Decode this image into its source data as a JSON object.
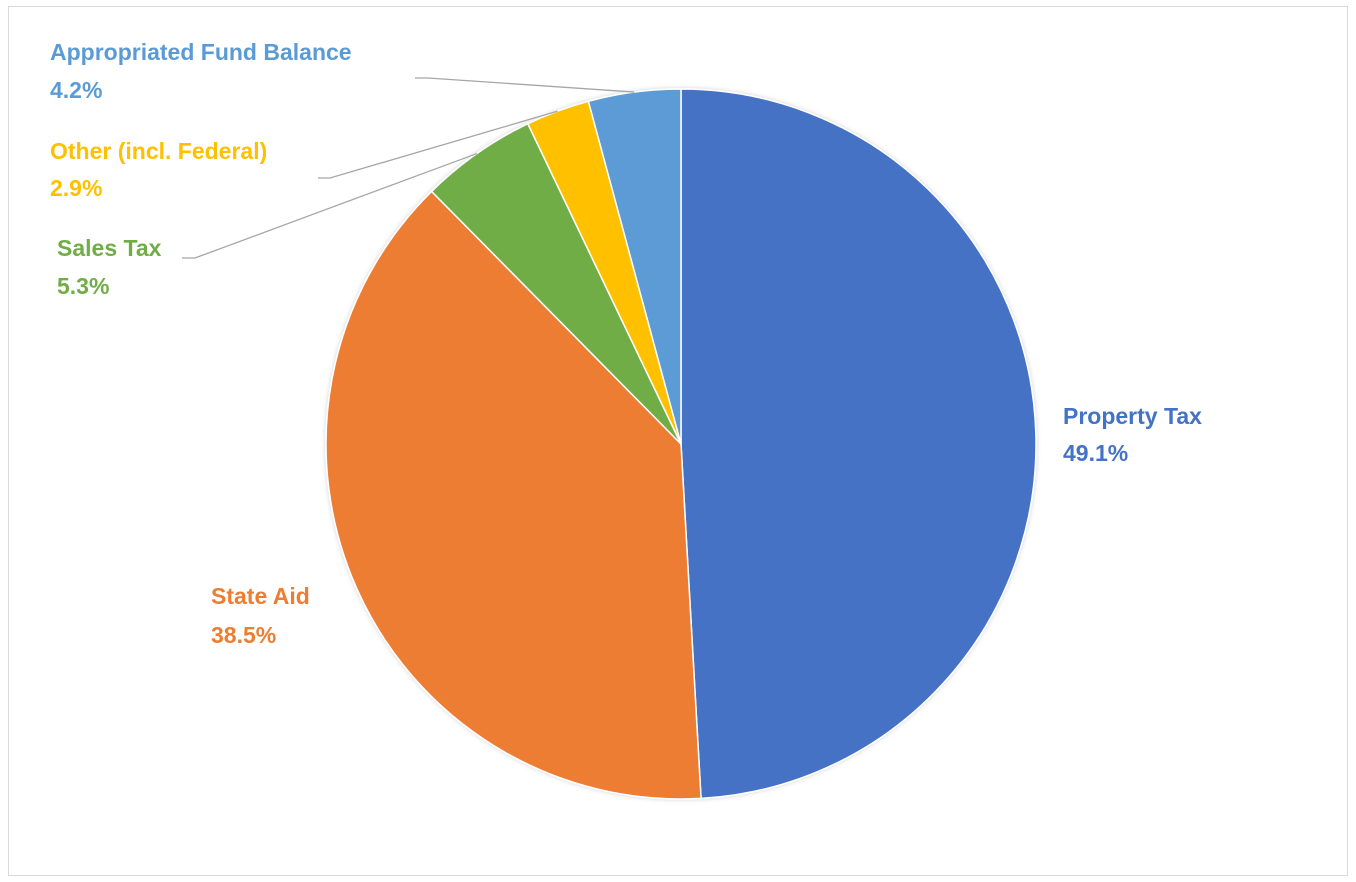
{
  "chart_data": {
    "type": "pie",
    "title": "",
    "slices": [
      {
        "label": "Property Tax",
        "value": 49.1,
        "value_text": "49.1%",
        "color": "#4472C4"
      },
      {
        "label": "State Aid",
        "value": 38.5,
        "value_text": "38.5%",
        "color": "#ED7D31"
      },
      {
        "label": "Sales Tax",
        "value": 5.3,
        "value_text": "5.3%",
        "color": "#70AD47"
      },
      {
        "label": "Other (incl. Federal)",
        "value": 2.9,
        "value_text": "2.9%",
        "color": "#FFC000"
      },
      {
        "label": "Appropriated Fund Balance",
        "value": 4.2,
        "value_text": "4.2%",
        "color": "#5B9BD5"
      }
    ],
    "start_angle": "12 o'clock",
    "direction": "clockwise",
    "legend": "none",
    "data_labels": "category name and percentage, outside end with leader lines for small slices"
  }
}
